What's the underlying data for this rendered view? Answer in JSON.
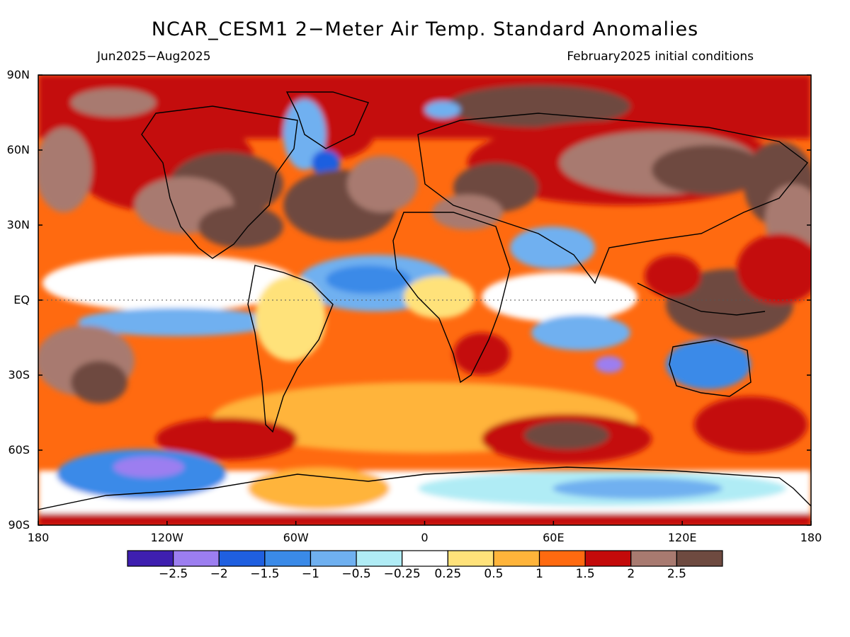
{
  "title": "NCAR_CESM1 2−Meter Air Temp. Standard Anomalies",
  "subtitle_left": "Jun2025−Aug2025",
  "subtitle_right": "February2025 initial conditions",
  "lat_ticks": [
    {
      "label": "90N",
      "value": 90
    },
    {
      "label": "60N",
      "value": 60
    },
    {
      "label": "30N",
      "value": 30
    },
    {
      "label": "EQ",
      "value": 0
    },
    {
      "label": "30S",
      "value": -30
    },
    {
      "label": "60S",
      "value": -60
    },
    {
      "label": "90S",
      "value": -90
    }
  ],
  "lon_ticks": [
    {
      "label": "180",
      "value": -180
    },
    {
      "label": "120W",
      "value": -120
    },
    {
      "label": "60W",
      "value": -60
    },
    {
      "label": "0",
      "value": 0
    },
    {
      "label": "60E",
      "value": 60
    },
    {
      "label": "120E",
      "value": 120
    },
    {
      "label": "180",
      "value": 180
    }
  ],
  "colorbar": {
    "colors": [
      "#3e1fb0",
      "#9c7ef0",
      "#1f5fe0",
      "#3a8ae8",
      "#6fb0f0",
      "#b0ecf5",
      "#ffffff",
      "#ffe27a",
      "#ffb43a",
      "#ff6a10",
      "#c40a0a",
      "#a87a70",
      "#6e4a40"
    ],
    "labels": [
      "−2.5",
      "−2",
      "−1.5",
      "−1",
      "−0.5",
      "−0.25",
      "0.25",
      "0.5",
      "1",
      "1.5",
      "2",
      "2.5"
    ]
  },
  "palette": {
    "background_warm": "#ff6a10",
    "deep_red": "#c40a0a",
    "brown": "#6e4a40",
    "tan": "#a87a70"
  }
}
